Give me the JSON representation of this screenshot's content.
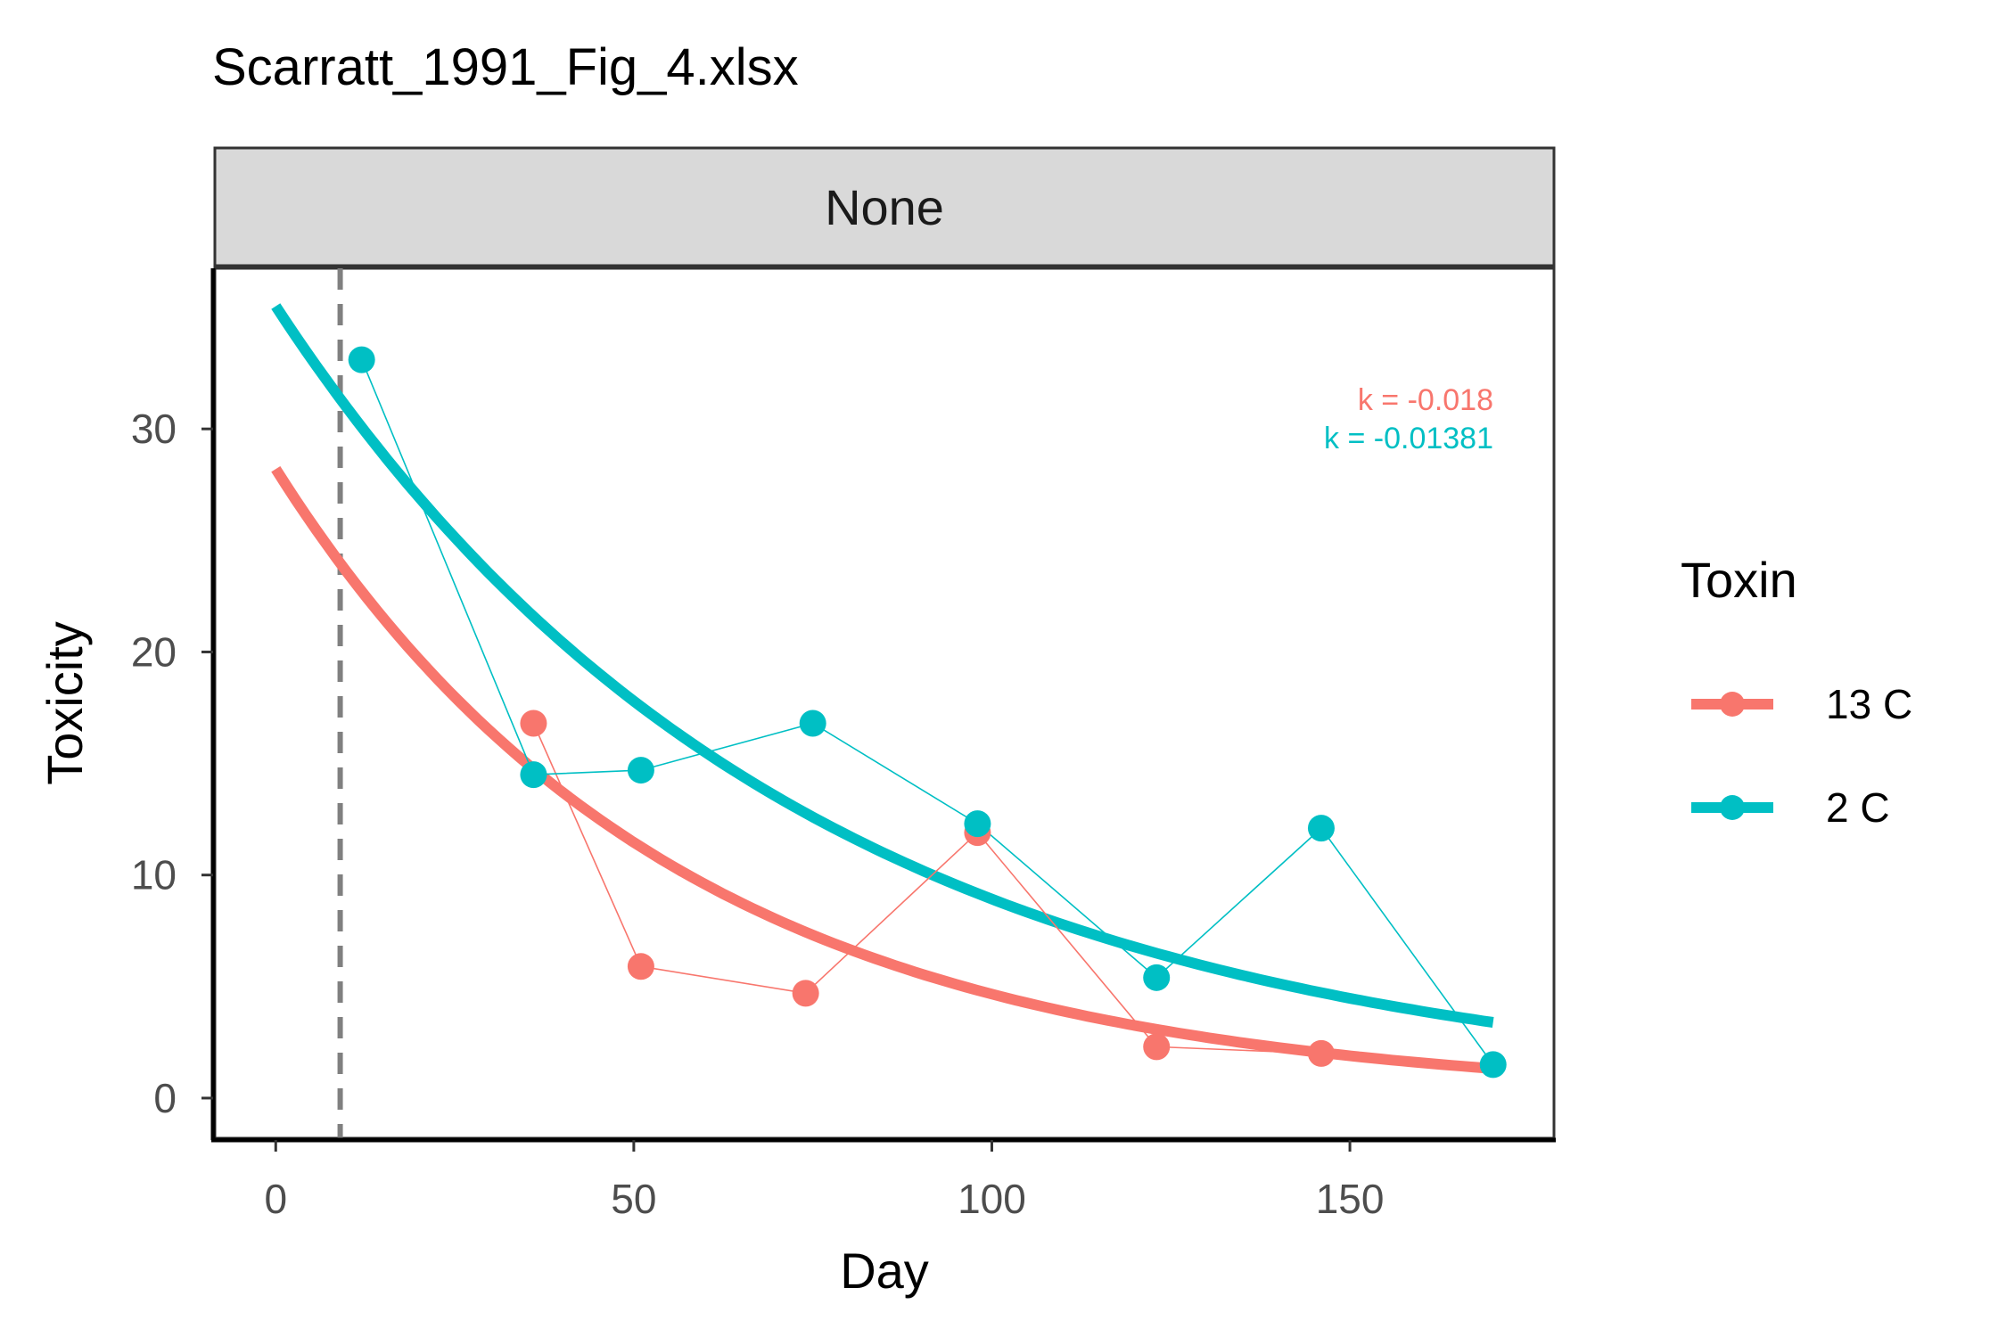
{
  "chart_data": {
    "type": "line",
    "title": "Scarratt_1991_Fig_4.xlsx",
    "facet_label": "None",
    "xlabel": "Day",
    "ylabel": "Toxicity",
    "xlim": [
      -8.5,
      178.5
    ],
    "ylim": [
      -1.8,
      37.2
    ],
    "x_ticks": [
      0,
      50,
      100,
      150
    ],
    "y_ticks": [
      0,
      10,
      20,
      30
    ],
    "vline_x": 9,
    "legend_title": "Toxin",
    "legend_position": "right",
    "grid": false,
    "series": [
      {
        "name": "13 C",
        "color": "#F8766D",
        "points": [
          [
            36,
            16.8
          ],
          [
            51,
            5.9
          ],
          [
            74,
            4.7
          ],
          [
            98,
            11.9
          ],
          [
            123,
            2.3
          ],
          [
            146,
            2.0
          ]
        ],
        "fit": {
          "type": "exponential",
          "a": 28.2,
          "k": -0.018,
          "x_range": [
            0,
            170
          ]
        },
        "k_label": "k = -0.018"
      },
      {
        "name": "2 C",
        "color": "#00BFC4",
        "points": [
          [
            12,
            33.1
          ],
          [
            36,
            14.5
          ],
          [
            51,
            14.7
          ],
          [
            75,
            16.8
          ],
          [
            98,
            12.3
          ],
          [
            123,
            5.4
          ],
          [
            146,
            12.1
          ],
          [
            170,
            1.5
          ]
        ],
        "fit": {
          "type": "exponential",
          "a": 35.5,
          "k": -0.01381,
          "x_range": [
            0,
            170
          ]
        },
        "k_label": "k = -0.01381"
      }
    ]
  }
}
